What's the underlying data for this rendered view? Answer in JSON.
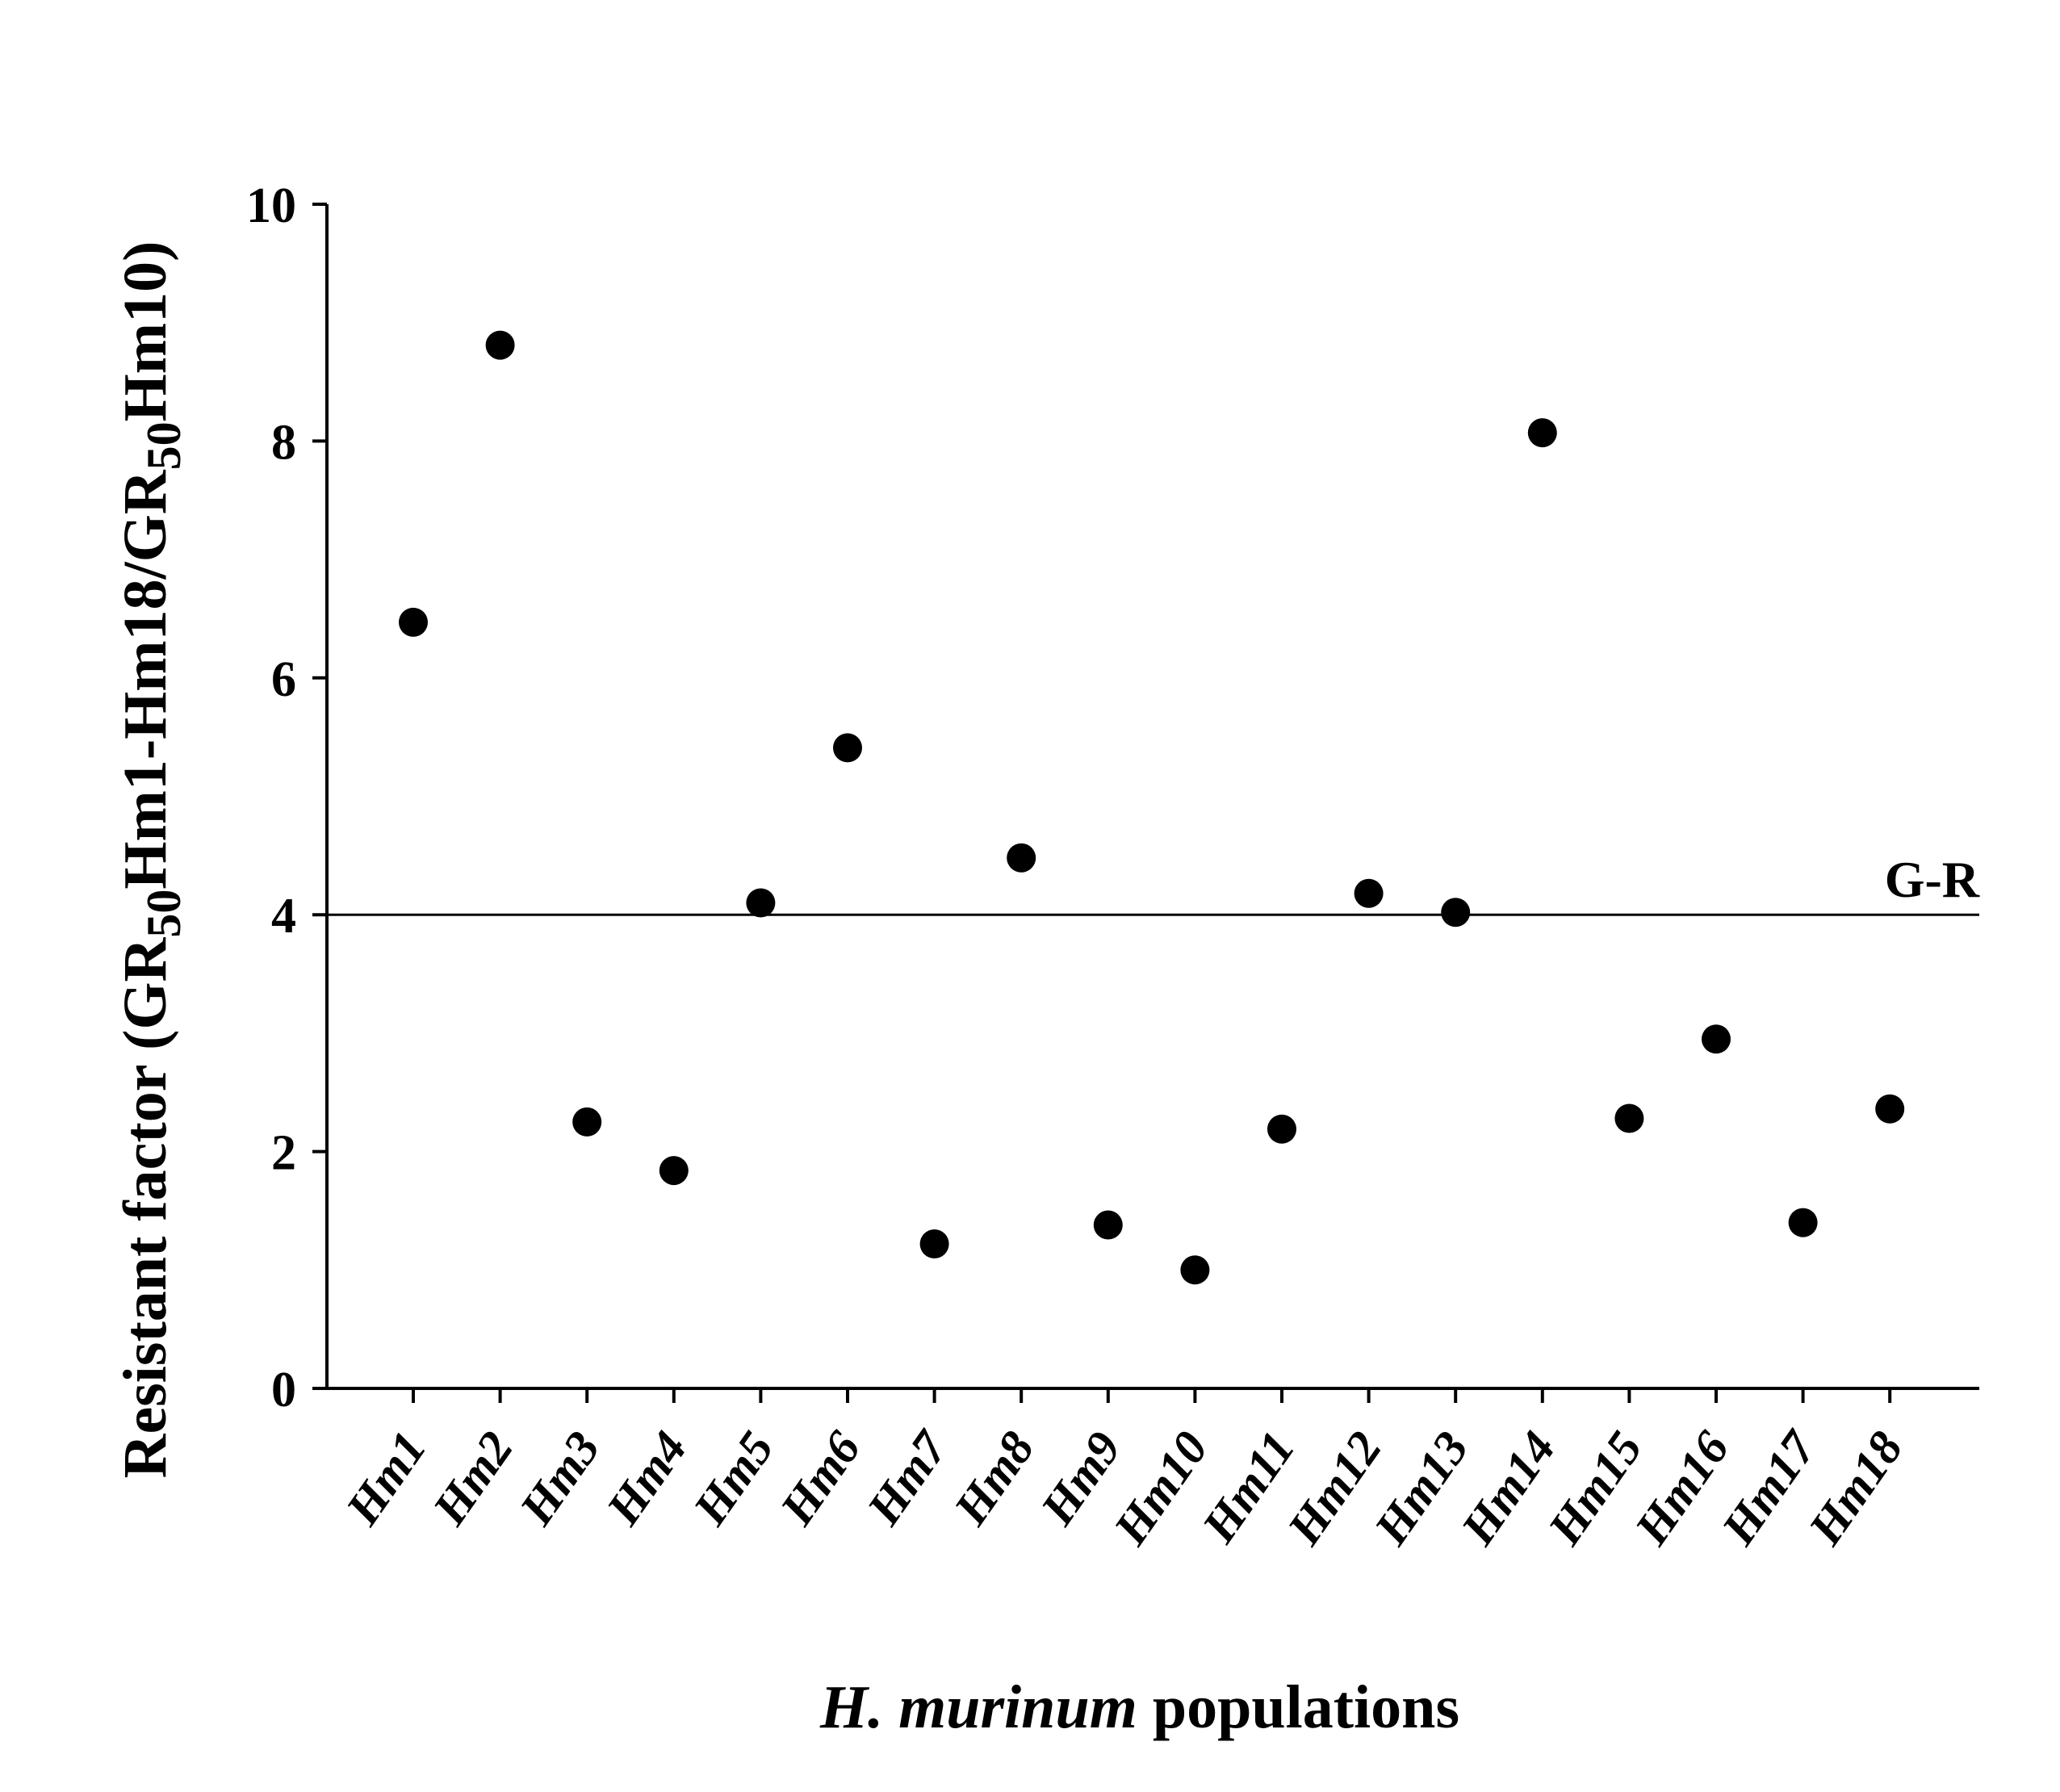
{
  "chart_data": {
    "type": "scatter",
    "title": "",
    "xlabel_italic": "H. murinum",
    "xlabel_rest": " populations",
    "ylabel_parts": {
      "p1": "Resistant factor (GR",
      "s1": "50",
      "p2": "Hm1-Hm18/GR",
      "s2": "50",
      "p3": "Hm10)"
    },
    "categories": [
      "Hm1",
      "Hm2",
      "Hm3",
      "Hm4",
      "Hm5",
      "Hm6",
      "Hm7",
      "Hm8",
      "Hm9",
      "Hm10",
      "Hm11",
      "Hm12",
      "Hm13",
      "Hm14",
      "Hm15",
      "Hm16",
      "Hm17",
      "Hm18"
    ],
    "values": [
      6.47,
      8.81,
      2.25,
      1.84,
      4.1,
      5.41,
      1.22,
      4.48,
      1.38,
      1.0,
      2.19,
      4.18,
      4.02,
      8.07,
      2.28,
      2.95,
      1.4,
      2.36
    ],
    "ylim": [
      0,
      10
    ],
    "yticks": [
      0,
      2,
      4,
      6,
      8,
      10
    ],
    "reference_line": {
      "value": 4,
      "label": "G-R"
    },
    "grid": false,
    "legend": "none",
    "marker_color": "#000000"
  }
}
